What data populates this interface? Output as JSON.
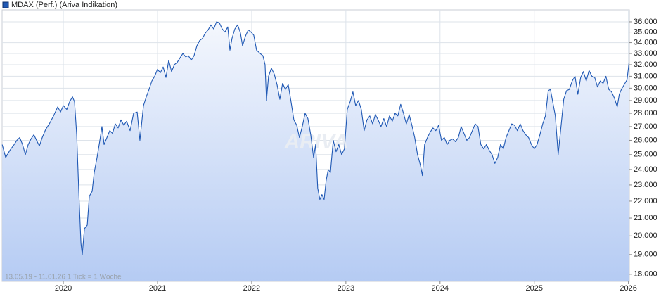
{
  "chart_data": {
    "type": "area",
    "legend": "MDAX (Perf.) (Ariva Indikation)",
    "footnote": "13.05.19 - 11.01.26   1 Tick = 1 Woche",
    "watermark": "ARIVA",
    "color": "#1f58b4",
    "log_y": true,
    "grid": true,
    "xlim": [
      2019.35,
      2026.01
    ],
    "xticks": [
      2020,
      2021,
      2022,
      2023,
      2024,
      2025,
      2026
    ],
    "ylim": [
      17650,
      37200
    ],
    "yticks": [
      {
        "value": 18000,
        "label": "18.000"
      },
      {
        "value": 19000,
        "label": "19.000"
      },
      {
        "value": 20000,
        "label": "20.000"
      },
      {
        "value": 21000,
        "label": "21.000"
      },
      {
        "value": 22000,
        "label": "22.000"
      },
      {
        "value": 23000,
        "label": "23.000"
      },
      {
        "value": 24000,
        "label": "24.000"
      },
      {
        "value": 25000,
        "label": "25.000"
      },
      {
        "value": 26000,
        "label": "26.000"
      },
      {
        "value": 27000,
        "label": "27.000"
      },
      {
        "value": 28000,
        "label": "28.000"
      },
      {
        "value": 29000,
        "label": "29.000"
      },
      {
        "value": 30000,
        "label": "30.000"
      },
      {
        "value": 31000,
        "label": "31.000"
      },
      {
        "value": 32000,
        "label": "32.000"
      },
      {
        "value": 33000,
        "label": "33.000"
      },
      {
        "value": 34000,
        "label": "34.000"
      },
      {
        "value": 35000,
        "label": "35.000"
      },
      {
        "value": 36000,
        "label": "36.000"
      }
    ],
    "x": [
      2019.351,
      2019.388,
      2019.433,
      2019.478,
      2019.507,
      2019.537,
      2019.567,
      2019.597,
      2019.627,
      2019.657,
      2019.687,
      2019.716,
      2019.746,
      2019.776,
      2019.813,
      2019.851,
      2019.896,
      2019.94,
      2019.97,
      2020.0,
      2020.037,
      2020.067,
      2020.097,
      2020.119,
      2020.142,
      2020.164,
      2020.187,
      2020.201,
      2020.224,
      2020.254,
      2020.276,
      2020.306,
      2020.328,
      2020.358,
      2020.388,
      2020.41,
      2020.433,
      2020.463,
      2020.493,
      2020.522,
      2020.552,
      2020.582,
      2020.612,
      2020.642,
      2020.672,
      2020.709,
      2020.746,
      2020.784,
      2020.813,
      2020.851,
      2020.881,
      2020.91,
      2020.94,
      2020.97,
      2021.0,
      2021.03,
      2021.06,
      2021.09,
      2021.119,
      2021.149,
      2021.179,
      2021.209,
      2021.239,
      2021.269,
      2021.299,
      2021.328,
      2021.358,
      2021.388,
      2021.418,
      2021.448,
      2021.478,
      2021.507,
      2021.537,
      2021.567,
      2021.597,
      2021.627,
      2021.657,
      2021.687,
      2021.716,
      2021.746,
      2021.769,
      2021.791,
      2021.821,
      2021.851,
      2021.881,
      2021.903,
      2021.933,
      2021.963,
      2021.993,
      2022.022,
      2022.052,
      2022.09,
      2022.119,
      2022.142,
      2022.157,
      2022.179,
      2022.209,
      2022.239,
      2022.269,
      2022.299,
      2022.328,
      2022.358,
      2022.388,
      2022.418,
      2022.448,
      2022.478,
      2022.507,
      2022.537,
      2022.567,
      2022.597,
      2022.627,
      2022.657,
      2022.679,
      2022.701,
      2022.724,
      2022.746,
      2022.769,
      2022.791,
      2022.813,
      2022.836,
      2022.866,
      2022.896,
      2022.925,
      2022.955,
      2022.985,
      2023.015,
      2023.045,
      2023.075,
      2023.104,
      2023.134,
      2023.164,
      2023.194,
      2023.224,
      2023.254,
      2023.284,
      2023.313,
      2023.343,
      2023.373,
      2023.403,
      2023.433,
      2023.463,
      2023.493,
      2023.522,
      2023.552,
      2023.582,
      2023.612,
      2023.642,
      2023.672,
      2023.701,
      2023.731,
      2023.761,
      2023.791,
      2023.813,
      2023.836,
      2023.866,
      2023.896,
      2023.925,
      2023.955,
      2023.985,
      2024.015,
      2024.045,
      2024.075,
      2024.104,
      2024.134,
      2024.164,
      2024.194,
      2024.224,
      2024.254,
      2024.284,
      2024.313,
      2024.343,
      2024.373,
      2024.403,
      2024.433,
      2024.463,
      2024.493,
      2024.522,
      2024.552,
      2024.582,
      2024.612,
      2024.642,
      2024.672,
      2024.701,
      2024.731,
      2024.761,
      2024.791,
      2024.821,
      2024.851,
      2024.881,
      2024.91,
      2024.94,
      2024.97,
      2025.0,
      2025.03,
      2025.06,
      2025.09,
      2025.119,
      2025.149,
      2025.172,
      2025.201,
      2025.224,
      2025.254,
      2025.284,
      2025.313,
      2025.343,
      2025.373,
      2025.403,
      2025.433,
      2025.463,
      2025.493,
      2025.522,
      2025.552,
      2025.582,
      2025.612,
      2025.642,
      2025.672,
      2025.701,
      2025.731,
      2025.761,
      2025.791,
      2025.821,
      2025.851,
      2025.881,
      2025.903,
      2025.925,
      2025.955,
      2025.985,
      2026.007
    ],
    "values": [
      25700,
      24800,
      25300,
      25700,
      26000,
      26200,
      25700,
      25000,
      25700,
      26100,
      26400,
      26000,
      25600,
      26200,
      26800,
      27200,
      27800,
      28500,
      28100,
      28600,
      28300,
      28900,
      29300,
      28900,
      26400,
      22600,
      19600,
      19000,
      20400,
      20600,
      22300,
      22600,
      23800,
      24800,
      26000,
      27000,
      25700,
      26200,
      26700,
      26500,
      27200,
      26900,
      27500,
      27100,
      27400,
      26700,
      28000,
      28100,
      26000,
      28600,
      29300,
      29900,
      30600,
      31000,
      31600,
      31300,
      31800,
      30900,
      32400,
      31400,
      32000,
      32200,
      32600,
      33000,
      32700,
      32800,
      32400,
      32800,
      33700,
      34200,
      34400,
      34900,
      35200,
      35700,
      35300,
      36000,
      35900,
      35300,
      35000,
      35500,
      33300,
      34400,
      35300,
      35700,
      34900,
      33700,
      34600,
      35200,
      35000,
      34700,
      33300,
      33000,
      32800,
      32000,
      29000,
      31000,
      31700,
      31200,
      30300,
      29100,
      30400,
      29900,
      30300,
      28900,
      27500,
      27100,
      26200,
      27000,
      28000,
      27600,
      26400,
      24800,
      25700,
      22800,
      22100,
      22400,
      22100,
      23300,
      24000,
      23800,
      26000,
      25200,
      25700,
      25000,
      25400,
      28300,
      28900,
      29700,
      28600,
      29000,
      28300,
      26700,
      27500,
      27800,
      27200,
      27900,
      27500,
      27000,
      27600,
      27000,
      27800,
      27400,
      28000,
      27800,
      28700,
      28000,
      27200,
      27900,
      27100,
      26200,
      25000,
      24300,
      23600,
      25700,
      26200,
      26600,
      26900,
      26700,
      27100,
      26000,
      26200,
      25700,
      26000,
      26100,
      25900,
      26200,
      27000,
      26500,
      26000,
      26200,
      26700,
      27200,
      27000,
      25700,
      25400,
      25700,
      25300,
      25000,
      24400,
      24800,
      25700,
      25400,
      26200,
      26700,
      27200,
      27100,
      26700,
      27200,
      26700,
      26400,
      26200,
      25700,
      25400,
      25700,
      26400,
      27200,
      27800,
      29800,
      29900,
      28700,
      27800,
      25000,
      27000,
      29100,
      29800,
      29900,
      30600,
      31000,
      29500,
      30900,
      31400,
      30600,
      31500,
      31000,
      30900,
      30100,
      30600,
      30400,
      31000,
      29900,
      29700,
      29200,
      28500,
      29500,
      29900,
      30300,
      30700,
      32200
    ]
  }
}
